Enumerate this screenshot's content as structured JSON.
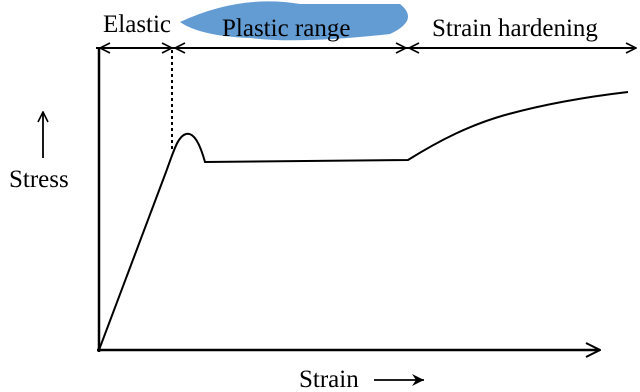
{
  "regions": {
    "elastic": "Elastic",
    "plastic": "Plastic range",
    "hardening": "Strain hardening"
  },
  "axes": {
    "y_label": "Stress",
    "x_label": "Strain"
  },
  "colors": {
    "ink": "#000000",
    "watermark": "#2f7bc4"
  }
}
